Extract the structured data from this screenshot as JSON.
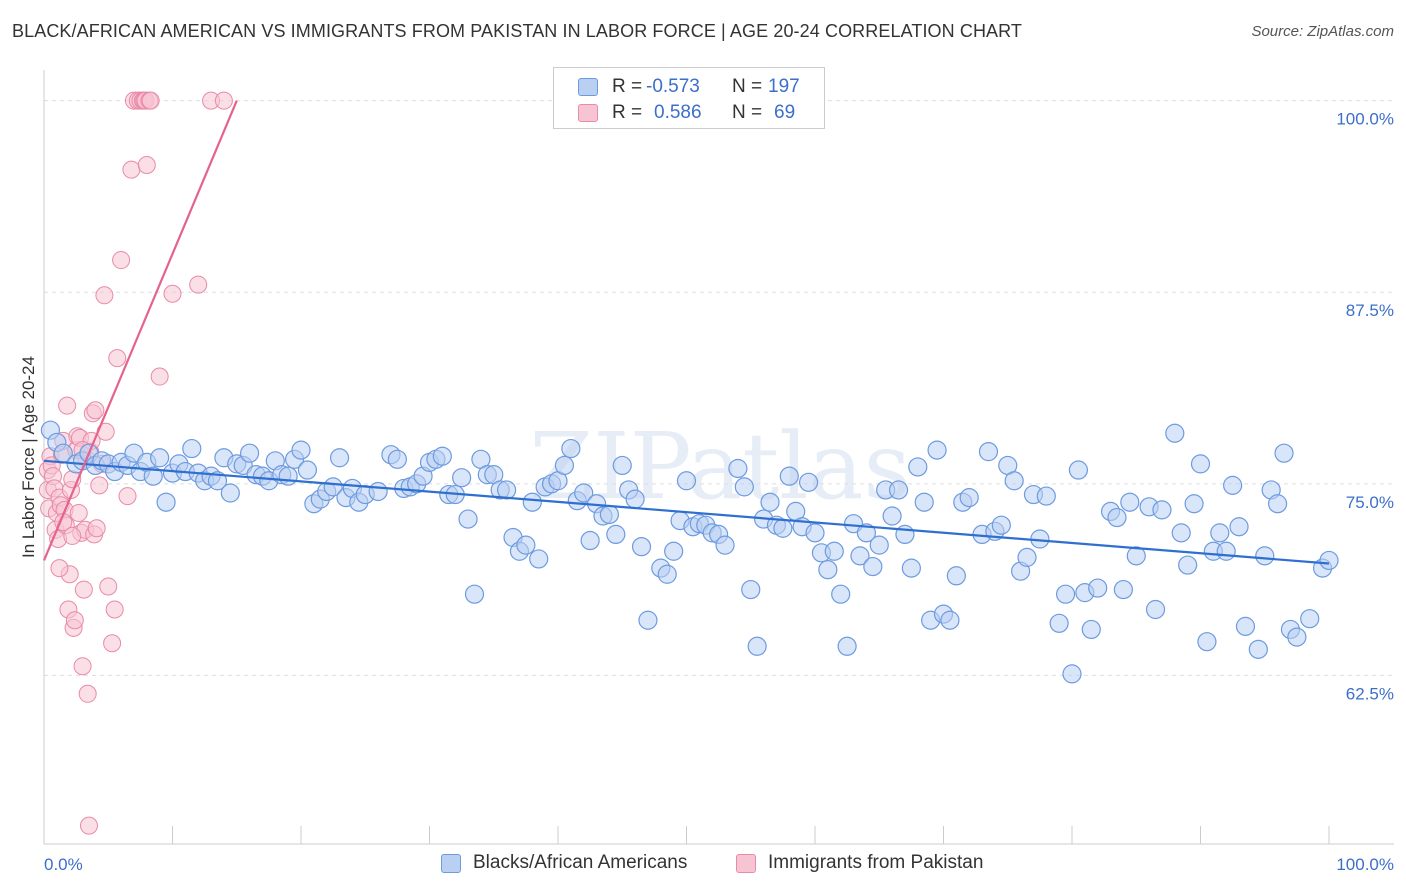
{
  "header": {
    "title": "BLACK/AFRICAN AMERICAN VS IMMIGRANTS FROM PAKISTAN IN LABOR FORCE | AGE 20-24 CORRELATION CHART",
    "source": "Source: ZipAtlas.com"
  },
  "watermark": "ZIPatlas",
  "legend": {
    "rows": [
      {
        "r_label": "R = ",
        "r_value": "-0.573",
        "n_label": "N = ",
        "n_value": "197"
      },
      {
        "r_label": "R = ",
        "r_value": "0.586",
        "n_label": "N = ",
        "n_value": "69"
      }
    ]
  },
  "colors": {
    "blue_fill": "#b9d0f2",
    "blue_stroke": "#6d9be0",
    "blue_line": "#2e6fcf",
    "pink_fill": "#f7c4d3",
    "pink_stroke": "#e98aa8",
    "pink_line": "#e5628f",
    "tick_label": "#3b6fc9"
  },
  "chart_data": {
    "type": "scatter",
    "title": "BLACK/AFRICAN AMERICAN VS IMMIGRANTS FROM PAKISTAN IN LABOR FORCE | AGE 20-24 CORRELATION CHART",
    "xlabel": "",
    "ylabel": "In Labor Force | Age 20-24",
    "xlim": [
      0,
      100
    ],
    "ylim": [
      51.5,
      102
    ],
    "x_tick_labels": [
      "0.0%",
      "100.0%"
    ],
    "y_ticks": [
      {
        "value": 100,
        "label": "100.0%"
      },
      {
        "value": 87.5,
        "label": "87.5%"
      },
      {
        "value": 75,
        "label": "75.0%"
      },
      {
        "value": 62.5,
        "label": "62.5%"
      }
    ],
    "grid": true,
    "series": [
      {
        "name": "Blacks/African Americans",
        "color": "#6d9be0",
        "trend": {
          "x": [
            0,
            100
          ],
          "y": [
            76.5,
            69.8
          ]
        },
        "points": [
          [
            0.5,
            78.5
          ],
          [
            1,
            77.7
          ],
          [
            1.5,
            77
          ],
          [
            2.5,
            76.3
          ],
          [
            3,
            76.5
          ],
          [
            3.5,
            77
          ],
          [
            4,
            76.2
          ],
          [
            4.5,
            76.5
          ],
          [
            5,
            76.3
          ],
          [
            5.5,
            75.8
          ],
          [
            6,
            76.4
          ],
          [
            6.5,
            76.2
          ],
          [
            7,
            77
          ],
          [
            7.5,
            75.8
          ],
          [
            8,
            76.4
          ],
          [
            8.5,
            75.5
          ],
          [
            9,
            76.7
          ],
          [
            9.5,
            73.8
          ],
          [
            10,
            75.7
          ],
          [
            10.5,
            76.3
          ],
          [
            11,
            75.8
          ],
          [
            11.5,
            77.3
          ],
          [
            12,
            75.7
          ],
          [
            12.5,
            75.2
          ],
          [
            13,
            75.5
          ],
          [
            13.5,
            75.2
          ],
          [
            14,
            76.7
          ],
          [
            14.5,
            74.4
          ],
          [
            15,
            76.3
          ],
          [
            15.5,
            76.2
          ],
          [
            16,
            77
          ],
          [
            16.5,
            75.6
          ],
          [
            17,
            75.5
          ],
          [
            17.5,
            75.2
          ],
          [
            18,
            76.5
          ],
          [
            18.5,
            75.6
          ],
          [
            19,
            75.5
          ],
          [
            19.5,
            76.6
          ],
          [
            20,
            77.2
          ],
          [
            20.5,
            75.9
          ],
          [
            21,
            73.7
          ],
          [
            21.5,
            74
          ],
          [
            22,
            74.5
          ],
          [
            22.5,
            74.8
          ],
          [
            23,
            76.7
          ],
          [
            23.5,
            74.1
          ],
          [
            24,
            74.7
          ],
          [
            24.5,
            73.8
          ],
          [
            25,
            74.3
          ],
          [
            26,
            74.5
          ],
          [
            27,
            76.9
          ],
          [
            27.5,
            76.6
          ],
          [
            28,
            74.7
          ],
          [
            28.5,
            74.8
          ],
          [
            29,
            75
          ],
          [
            29.5,
            75.5
          ],
          [
            30,
            76.4
          ],
          [
            30.5,
            76.6
          ],
          [
            31,
            76.8
          ],
          [
            31.5,
            74.3
          ],
          [
            32,
            74.3
          ],
          [
            32.5,
            75.4
          ],
          [
            33,
            72.7
          ],
          [
            33.5,
            67.8
          ],
          [
            34,
            76.6
          ],
          [
            34.5,
            75.6
          ],
          [
            35,
            75.6
          ],
          [
            35.5,
            74.6
          ],
          [
            36,
            74.6
          ],
          [
            36.5,
            71.5
          ],
          [
            37,
            70.6
          ],
          [
            37.5,
            71
          ],
          [
            38,
            73.8
          ],
          [
            38.5,
            70.1
          ],
          [
            39,
            74.8
          ],
          [
            39.5,
            75
          ],
          [
            40,
            75.2
          ],
          [
            40.5,
            76.2
          ],
          [
            41,
            77.3
          ],
          [
            41.5,
            73.9
          ],
          [
            42,
            74.4
          ],
          [
            42.5,
            71.3
          ],
          [
            43,
            73.7
          ],
          [
            43.5,
            72.9
          ],
          [
            44,
            73
          ],
          [
            44.5,
            71.7
          ],
          [
            45,
            76.2
          ],
          [
            45.5,
            74.6
          ],
          [
            46,
            74
          ],
          [
            46.5,
            70.9
          ],
          [
            47,
            66.1
          ],
          [
            48,
            69.5
          ],
          [
            48.5,
            69.1
          ],
          [
            49,
            70.6
          ],
          [
            49.5,
            72.6
          ],
          [
            50,
            75.2
          ],
          [
            50.5,
            72.2
          ],
          [
            51,
            72.4
          ],
          [
            51.5,
            72.3
          ],
          [
            52,
            71.8
          ],
          [
            52.5,
            71.7
          ],
          [
            53,
            71
          ],
          [
            54,
            76
          ],
          [
            54.5,
            74.8
          ],
          [
            55,
            68.1
          ],
          [
            55.5,
            64.4
          ],
          [
            56,
            72.7
          ],
          [
            56.5,
            73.8
          ],
          [
            57,
            72.3
          ],
          [
            57.5,
            72.1
          ],
          [
            58,
            75.5
          ],
          [
            58.5,
            73.2
          ],
          [
            59,
            72.2
          ],
          [
            59.5,
            75.1
          ],
          [
            60,
            71.8
          ],
          [
            60.5,
            70.5
          ],
          [
            61,
            69.4
          ],
          [
            61.5,
            70.6
          ],
          [
            62,
            67.8
          ],
          [
            62.5,
            64.4
          ],
          [
            63,
            72.4
          ],
          [
            63.5,
            70.3
          ],
          [
            64,
            71.8
          ],
          [
            64.5,
            69.6
          ],
          [
            65,
            71
          ],
          [
            65.5,
            74.6
          ],
          [
            66,
            72.9
          ],
          [
            66.5,
            74.6
          ],
          [
            67,
            71.7
          ],
          [
            67.5,
            69.5
          ],
          [
            68,
            76.1
          ],
          [
            68.5,
            73.8
          ],
          [
            69,
            66.1
          ],
          [
            69.5,
            77.2
          ],
          [
            70,
            66.5
          ],
          [
            70.5,
            66.1
          ],
          [
            71,
            69
          ],
          [
            71.5,
            73.8
          ],
          [
            72,
            74.1
          ],
          [
            73,
            71.7
          ],
          [
            73.5,
            77.1
          ],
          [
            74,
            71.9
          ],
          [
            74.5,
            72.3
          ],
          [
            75,
            76.2
          ],
          [
            75.5,
            75.2
          ],
          [
            76,
            69.3
          ],
          [
            76.5,
            70.2
          ],
          [
            77,
            74.3
          ],
          [
            77.5,
            71.4
          ],
          [
            78,
            74.2
          ],
          [
            79,
            65.9
          ],
          [
            79.5,
            67.8
          ],
          [
            80,
            62.6
          ],
          [
            80.5,
            75.9
          ],
          [
            81,
            67.9
          ],
          [
            81.5,
            65.5
          ],
          [
            82,
            68.2
          ],
          [
            83,
            73.2
          ],
          [
            83.5,
            72.8
          ],
          [
            84,
            68.1
          ],
          [
            84.5,
            73.8
          ],
          [
            85,
            70.3
          ],
          [
            86,
            73.5
          ],
          [
            86.5,
            66.8
          ],
          [
            87,
            73.3
          ],
          [
            88,
            78.3
          ],
          [
            88.5,
            71.8
          ],
          [
            89,
            69.7
          ],
          [
            89.5,
            73.7
          ],
          [
            90,
            76.3
          ],
          [
            90.5,
            64.7
          ],
          [
            91,
            70.6
          ],
          [
            91.5,
            71.8
          ],
          [
            92,
            70.6
          ],
          [
            92.5,
            74.9
          ],
          [
            93,
            72.2
          ],
          [
            93.5,
            65.7
          ],
          [
            94.5,
            64.2
          ],
          [
            95,
            70.3
          ],
          [
            95.5,
            74.6
          ],
          [
            96,
            73.7
          ],
          [
            96.5,
            77
          ],
          [
            97,
            65.5
          ],
          [
            97.5,
            65
          ],
          [
            98.5,
            66.2
          ],
          [
            99.5,
            69.5
          ],
          [
            100,
            70
          ]
        ]
      },
      {
        "name": "Immigrants from Pakistan",
        "color": "#e98aa8",
        "trend": {
          "x": [
            0,
            15
          ],
          "y": [
            70,
            100
          ]
        },
        "points": [
          [
            0.3,
            74.6
          ],
          [
            0.3,
            75.9
          ],
          [
            0.4,
            73.4
          ],
          [
            0.5,
            76.8
          ],
          [
            0.6,
            76.2
          ],
          [
            0.7,
            75.5
          ],
          [
            0.8,
            74.7
          ],
          [
            0.9,
            72
          ],
          [
            1,
            73.1
          ],
          [
            1.1,
            71.4
          ],
          [
            1.2,
            74.1
          ],
          [
            1.3,
            73.6
          ],
          [
            1.4,
            76.9
          ],
          [
            1.5,
            77.8
          ],
          [
            1.6,
            73.3
          ],
          [
            1.7,
            72.3
          ],
          [
            1.8,
            80.1
          ],
          [
            1.9,
            66.8
          ],
          [
            2,
            69.1
          ],
          [
            2.1,
            74.6
          ],
          [
            2.2,
            75.3
          ],
          [
            2.3,
            65.6
          ],
          [
            2.4,
            66.1
          ],
          [
            2.5,
            77.2
          ],
          [
            2.6,
            78.1
          ],
          [
            2.7,
            73.1
          ],
          [
            2.8,
            78
          ],
          [
            2.9,
            71.8
          ],
          [
            3,
            63.1
          ],
          [
            3.1,
            68.1
          ],
          [
            3.2,
            72
          ],
          [
            3.3,
            76.6
          ],
          [
            3.4,
            61.3
          ],
          [
            3.5,
            52.7
          ],
          [
            3.6,
            77.1
          ],
          [
            3.7,
            77.8
          ],
          [
            3.8,
            79.6
          ],
          [
            3.9,
            71.7
          ],
          [
            4,
            79.8
          ],
          [
            4.1,
            72.1
          ],
          [
            4.3,
            74.9
          ],
          [
            4.5,
            76.3
          ],
          [
            4.7,
            87.3
          ],
          [
            4.8,
            78.4
          ],
          [
            5,
            68.3
          ],
          [
            5.3,
            64.6
          ],
          [
            5.5,
            66.8
          ],
          [
            5.7,
            83.2
          ],
          [
            6,
            89.6
          ],
          [
            6.5,
            74.2
          ],
          [
            6.8,
            95.5
          ],
          [
            7,
            100
          ],
          [
            7.3,
            100
          ],
          [
            7.5,
            100
          ],
          [
            7.7,
            100
          ],
          [
            7.8,
            100
          ],
          [
            7.9,
            100
          ],
          [
            8,
            95.8
          ],
          [
            8.2,
            100
          ],
          [
            8.3,
            100
          ],
          [
            9,
            82
          ],
          [
            10,
            87.4
          ],
          [
            12,
            88
          ],
          [
            13,
            100
          ],
          [
            14,
            100
          ],
          [
            1.2,
            69.5
          ],
          [
            1.5,
            72.5
          ],
          [
            2.2,
            71.6
          ],
          [
            3,
            77.2
          ]
        ]
      }
    ]
  },
  "bottom_legend": {
    "items": [
      {
        "label": "Blacks/African Americans"
      },
      {
        "label": "Immigrants from Pakistan"
      }
    ]
  }
}
